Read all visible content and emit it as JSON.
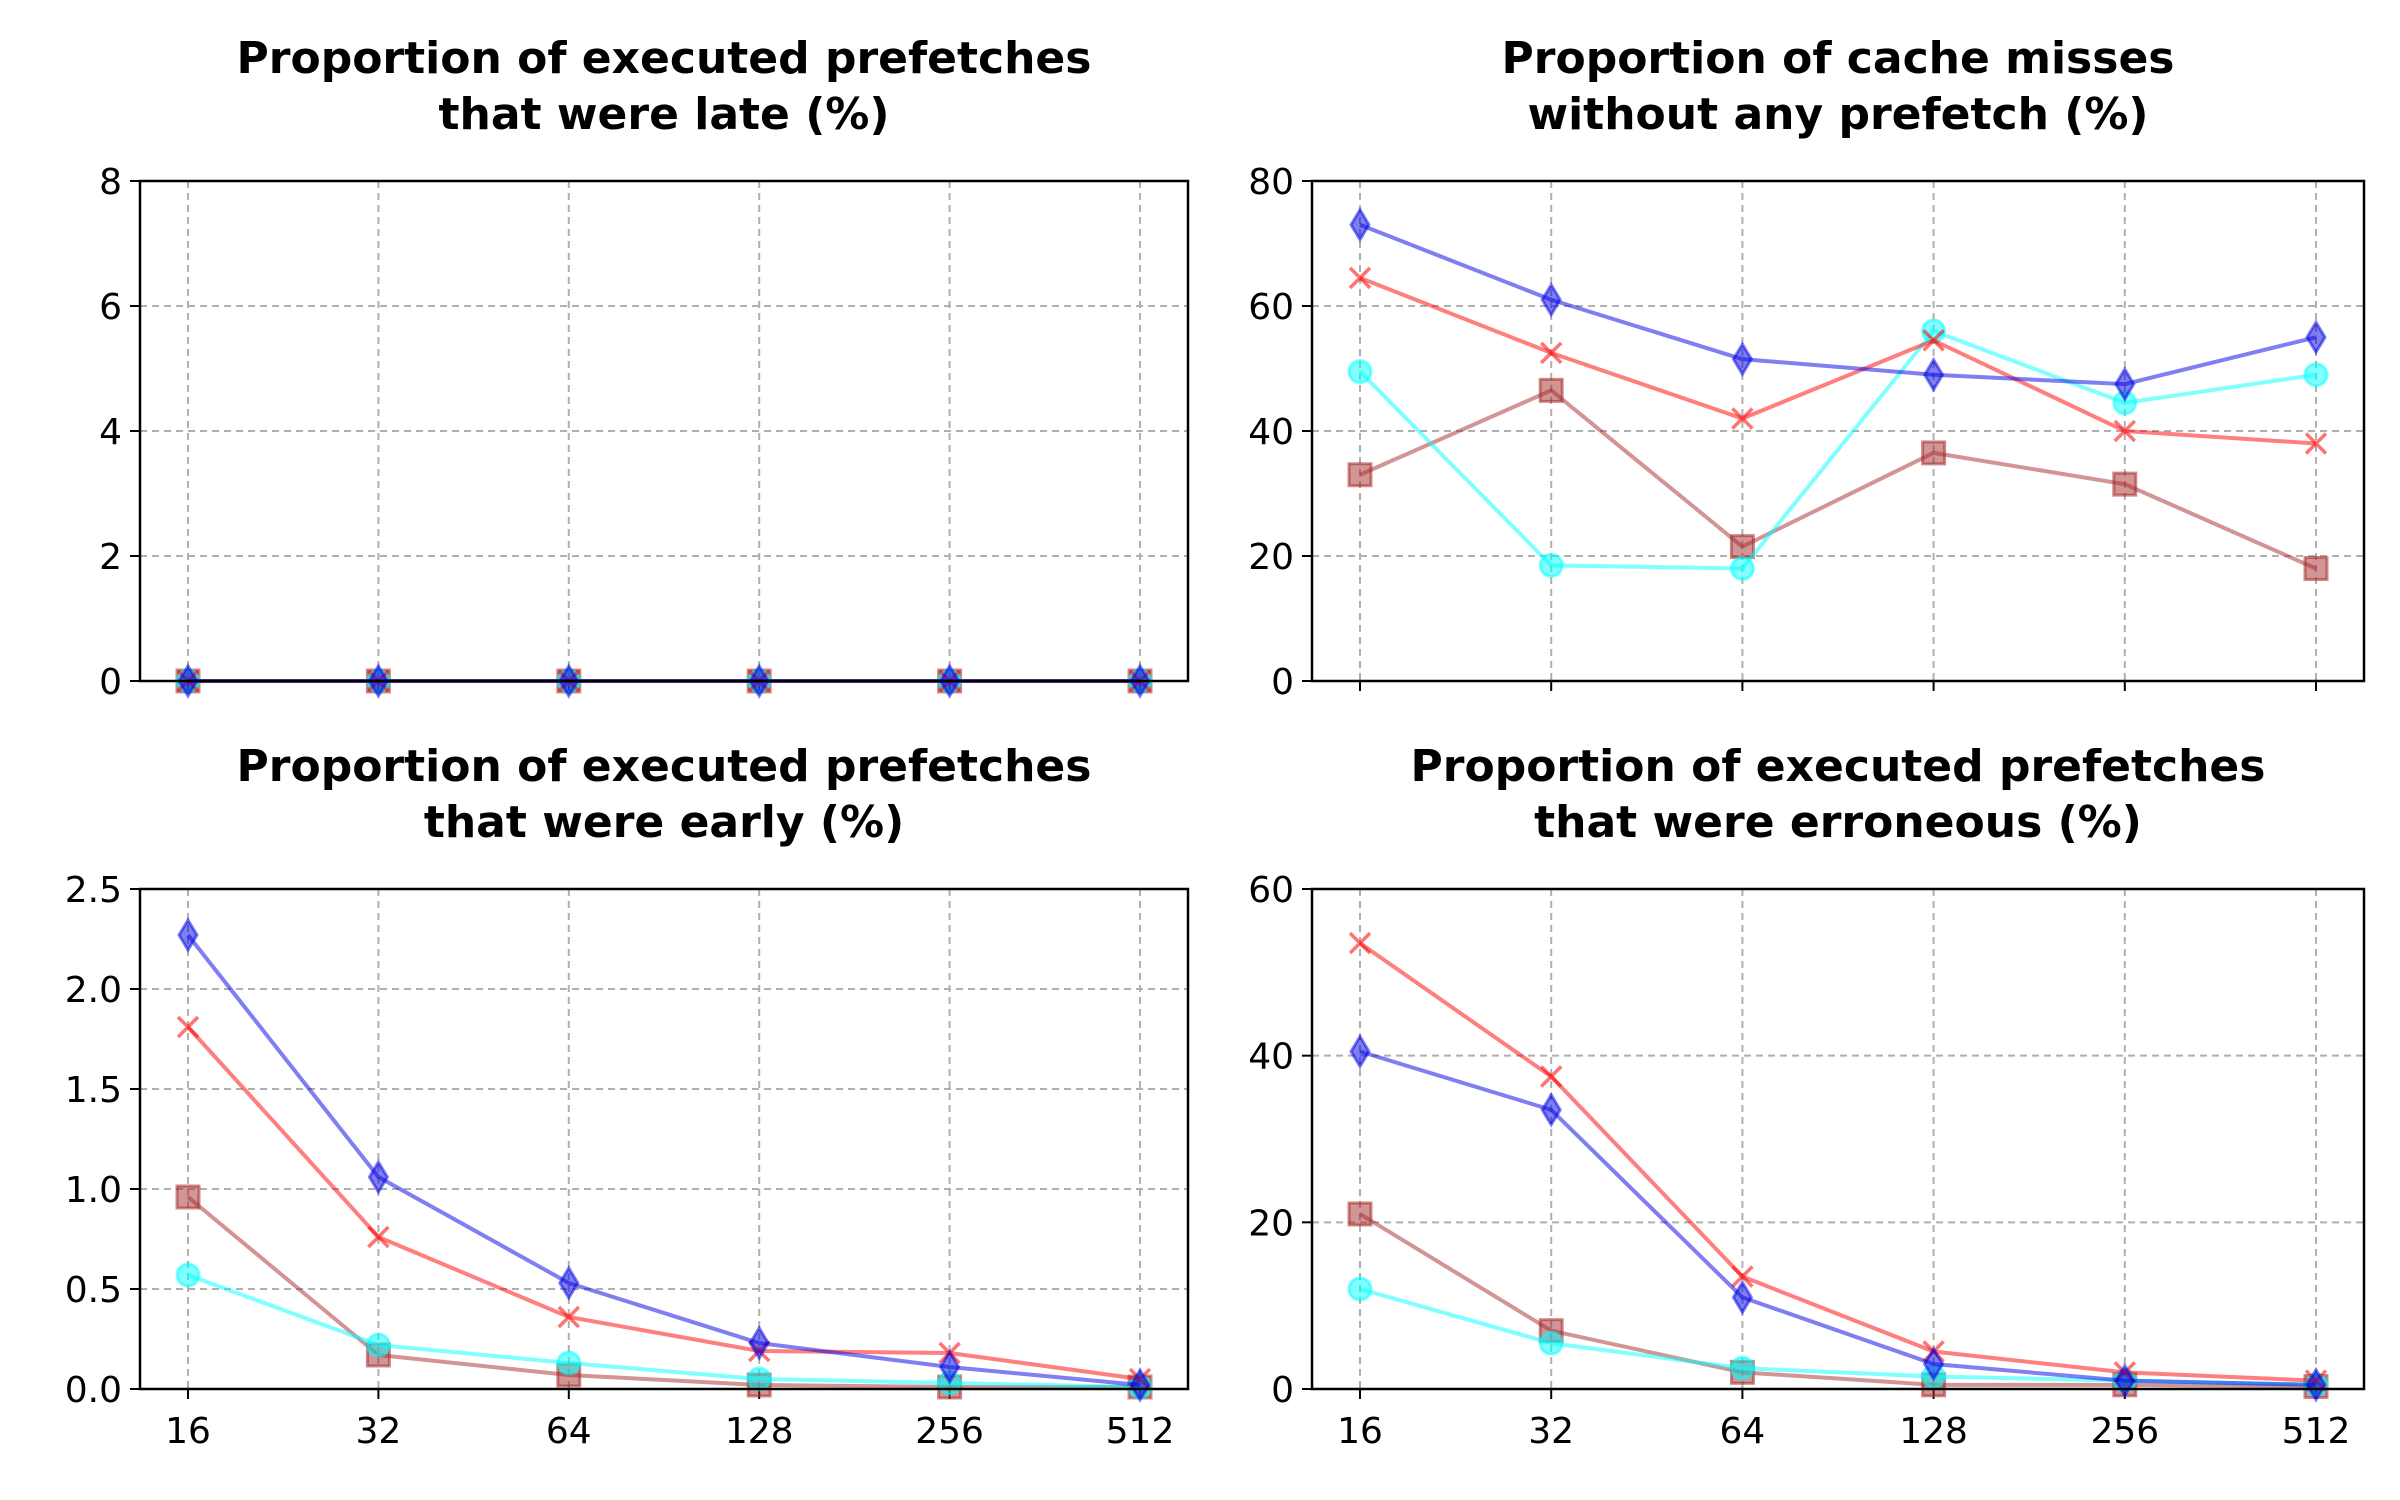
{
  "series_styles": [
    {
      "key": "s_blue",
      "color": "#0000e6",
      "marker": "diamond"
    },
    {
      "key": "s_red",
      "color": "#ff0000",
      "marker": "x"
    },
    {
      "key": "s_cyan",
      "color": "#00ffff",
      "marker": "circle"
    },
    {
      "key": "s_brown",
      "color": "#a52a2a",
      "marker": "square"
    }
  ],
  "chart_data": [
    {
      "type": "line",
      "title_lines": [
        "Proportion of executed prefetches",
        "that were late (%)"
      ],
      "x": [
        "16",
        "32",
        "64",
        "128",
        "256",
        "512"
      ],
      "ylim": [
        0,
        8
      ],
      "yticks": [
        "0",
        "2",
        "4",
        "6",
        "8"
      ],
      "show_xticklabels": false,
      "grid": true,
      "series": [
        {
          "style": "s_brown",
          "values": [
            0,
            0,
            0,
            0,
            0,
            0
          ]
        },
        {
          "style": "s_cyan",
          "values": [
            0,
            0,
            0,
            0,
            0,
            0
          ]
        },
        {
          "style": "s_red",
          "values": [
            0,
            0,
            0,
            0,
            0,
            0
          ]
        },
        {
          "style": "s_blue",
          "values": [
            0,
            0,
            0,
            0,
            0,
            0
          ]
        }
      ]
    },
    {
      "type": "line",
      "title_lines": [
        "Proportion of cache misses",
        "without any prefetch (%)"
      ],
      "x": [
        "16",
        "32",
        "64",
        "128",
        "256",
        "512"
      ],
      "ylim": [
        0,
        80
      ],
      "yticks": [
        "0",
        "20",
        "40",
        "60",
        "80"
      ],
      "show_xticklabels": false,
      "grid": true,
      "series": [
        {
          "style": "s_brown",
          "values": [
            33,
            46.5,
            21.5,
            36.5,
            31.5,
            18
          ]
        },
        {
          "style": "s_cyan",
          "values": [
            49.5,
            18.5,
            18,
            56,
            44.5,
            49
          ]
        },
        {
          "style": "s_red",
          "values": [
            64.5,
            52.5,
            42,
            54.5,
            40,
            38
          ]
        },
        {
          "style": "s_blue",
          "values": [
            73,
            61,
            51.5,
            49,
            47.5,
            55
          ]
        }
      ]
    },
    {
      "type": "line",
      "title_lines": [
        "Proportion of executed prefetches",
        "that were early (%)"
      ],
      "x": [
        "16",
        "32",
        "64",
        "128",
        "256",
        "512"
      ],
      "ylim": [
        0,
        2.5
      ],
      "yticks": [
        "0.0",
        "0.5",
        "1.0",
        "1.5",
        "2.0",
        "2.5"
      ],
      "show_xticklabels": true,
      "grid": true,
      "series": [
        {
          "style": "s_brown",
          "values": [
            0.96,
            0.17,
            0.07,
            0.02,
            0.01,
            0.01
          ]
        },
        {
          "style": "s_cyan",
          "values": [
            0.57,
            0.22,
            0.13,
            0.05,
            0.03,
            0.01
          ]
        },
        {
          "style": "s_red",
          "values": [
            1.81,
            0.76,
            0.36,
            0.19,
            0.18,
            0.05
          ]
        },
        {
          "style": "s_blue",
          "values": [
            2.27,
            1.06,
            0.53,
            0.23,
            0.11,
            0.02
          ]
        }
      ]
    },
    {
      "type": "line",
      "title_lines": [
        "Proportion of executed prefetches",
        "that were erroneous (%)"
      ],
      "x": [
        "16",
        "32",
        "64",
        "128",
        "256",
        "512"
      ],
      "ylim": [
        0,
        60
      ],
      "yticks": [
        "0",
        "20",
        "40",
        "60"
      ],
      "show_xticklabels": true,
      "grid": true,
      "series": [
        {
          "style": "s_brown",
          "values": [
            21,
            7,
            2,
            0.5,
            0.5,
            0.3
          ]
        },
        {
          "style": "s_cyan",
          "values": [
            12,
            5.5,
            2.5,
            1.5,
            1,
            0.5
          ]
        },
        {
          "style": "s_red",
          "values": [
            53.5,
            37.5,
            13.5,
            4.5,
            2,
            1
          ]
        },
        {
          "style": "s_blue",
          "values": [
            40.5,
            33.5,
            11,
            3,
            1,
            0.5
          ]
        }
      ]
    }
  ]
}
